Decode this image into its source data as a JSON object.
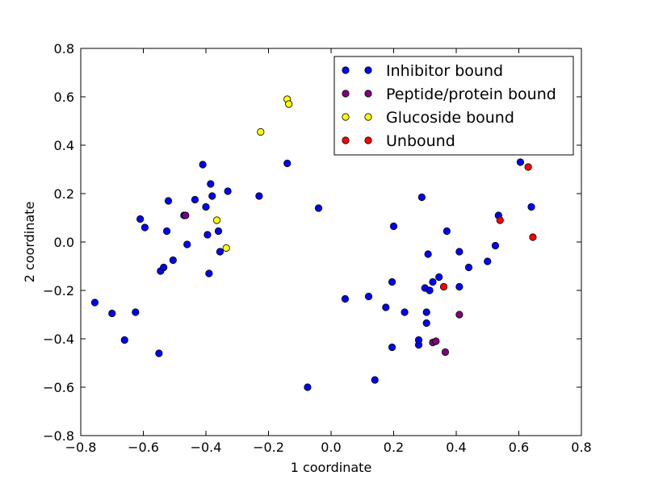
{
  "chart_data": {
    "type": "scatter",
    "xlabel": "1 coordinate",
    "ylabel": "2 coordinate",
    "xlim": [
      -0.8,
      0.8
    ],
    "ylim": [
      -0.8,
      0.8
    ],
    "xticks": [
      "−0.8",
      "−0.6",
      "−0.4",
      "−0.2",
      "0.0",
      "0.2",
      "0.4",
      "0.6",
      "0.8"
    ],
    "yticks": [
      "−0.8",
      "−0.6",
      "−0.4",
      "−0.2",
      "0.0",
      "0.2",
      "0.4",
      "0.6",
      "0.8"
    ],
    "grid": false,
    "legend_position": "top-right",
    "series": [
      {
        "name": "Inhibitor bound",
        "color": "#0000ff",
        "points": [
          [
            -0.755,
            -0.25
          ],
          [
            -0.7,
            -0.295
          ],
          [
            -0.66,
            -0.405
          ],
          [
            -0.625,
            -0.29
          ],
          [
            -0.61,
            0.095
          ],
          [
            -0.595,
            0.06
          ],
          [
            -0.55,
            -0.46
          ],
          [
            -0.545,
            -0.12
          ],
          [
            -0.535,
            -0.105
          ],
          [
            -0.525,
            0.045
          ],
          [
            -0.52,
            0.17
          ],
          [
            -0.505,
            -0.075
          ],
          [
            -0.47,
            0.11
          ],
          [
            -0.46,
            -0.01
          ],
          [
            -0.435,
            0.175
          ],
          [
            -0.41,
            0.32
          ],
          [
            -0.4,
            0.145
          ],
          [
            -0.395,
            0.03
          ],
          [
            -0.39,
            -0.13
          ],
          [
            -0.385,
            0.24
          ],
          [
            -0.38,
            0.19
          ],
          [
            -0.36,
            0.045
          ],
          [
            -0.355,
            -0.04
          ],
          [
            -0.33,
            0.21
          ],
          [
            -0.23,
            0.19
          ],
          [
            -0.14,
            0.325
          ],
          [
            -0.075,
            -0.6
          ],
          [
            -0.04,
            0.14
          ],
          [
            0.045,
            -0.235
          ],
          [
            0.12,
            -0.225
          ],
          [
            0.14,
            -0.57
          ],
          [
            0.175,
            -0.27
          ],
          [
            0.195,
            -0.165
          ],
          [
            0.195,
            -0.435
          ],
          [
            0.2,
            0.065
          ],
          [
            0.235,
            -0.29
          ],
          [
            0.28,
            -0.425
          ],
          [
            0.28,
            -0.405
          ],
          [
            0.29,
            0.185
          ],
          [
            0.3,
            -0.19
          ],
          [
            0.305,
            -0.29
          ],
          [
            0.305,
            -0.335
          ],
          [
            0.31,
            -0.05
          ],
          [
            0.315,
            -0.2
          ],
          [
            0.325,
            -0.165
          ],
          [
            0.345,
            -0.145
          ],
          [
            0.37,
            0.045
          ],
          [
            0.41,
            -0.04
          ],
          [
            0.41,
            -0.185
          ],
          [
            0.44,
            -0.105
          ],
          [
            0.5,
            -0.08
          ],
          [
            0.525,
            -0.015
          ],
          [
            0.535,
            0.11
          ],
          [
            0.605,
            0.33
          ],
          [
            0.64,
            0.145
          ]
        ]
      },
      {
        "name": "Peptide/protein bound",
        "color": "#800080",
        "points": [
          [
            -0.465,
            0.11
          ],
          [
            0.325,
            -0.415
          ],
          [
            0.335,
            -0.41
          ],
          [
            0.365,
            -0.455
          ],
          [
            0.41,
            -0.3
          ]
        ]
      },
      {
        "name": "Glucoside bound",
        "color": "#ffff00",
        "points": [
          [
            -0.365,
            0.09
          ],
          [
            -0.335,
            -0.025
          ],
          [
            -0.225,
            0.455
          ],
          [
            -0.14,
            0.59
          ],
          [
            -0.135,
            0.57
          ]
        ]
      },
      {
        "name": "Unbound",
        "color": "#ff0000",
        "points": [
          [
            0.36,
            -0.185
          ],
          [
            0.54,
            0.09
          ],
          [
            0.63,
            0.31
          ],
          [
            0.645,
            0.02
          ]
        ]
      }
    ]
  }
}
